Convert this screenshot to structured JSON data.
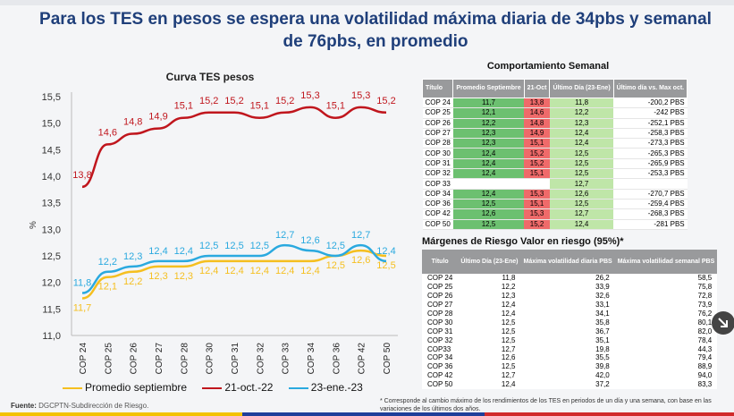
{
  "title": "Para los TES en pesos se espera una volatilidad máxima diaria de 34pbs y semanal de 76pbs, en promedio",
  "colors": {
    "title": "#1f3f7a",
    "promedio": "#f5bf1f",
    "oct": "#c0161d",
    "ene": "#2aa9df"
  },
  "chart_data": {
    "type": "line",
    "title": "Curva TES pesos",
    "ylabel": "%",
    "categories": [
      "COP 24",
      "COP 25",
      "COP 26",
      "COP 27",
      "COP 28",
      "COP 30",
      "COP 31",
      "COP 32",
      "COP 33",
      "COP 34",
      "COP 36",
      "COP 42",
      "COP 50"
    ],
    "ylim": [
      11.0,
      15.5
    ],
    "yticks": [
      "11,0",
      "11,5",
      "12,0",
      "12,5",
      "13,0",
      "13,5",
      "14,0",
      "14,5",
      "15,0",
      "15,5"
    ],
    "series": [
      {
        "name": "Promedio septiembre",
        "values": [
          11.7,
          12.1,
          12.2,
          12.3,
          12.3,
          12.4,
          12.4,
          12.4,
          12.4,
          12.4,
          12.5,
          12.6,
          12.5
        ],
        "labels": [
          "11,7",
          "12,1",
          "12,2",
          "12,3",
          "12,3",
          "12,4",
          "12,4",
          "12,4",
          "12,4",
          "12,4",
          "12,5",
          "12,6",
          "12,5"
        ]
      },
      {
        "name": "21-oct.-22",
        "values": [
          13.8,
          14.6,
          14.8,
          14.9,
          15.1,
          15.2,
          15.2,
          15.1,
          15.2,
          15.3,
          15.1,
          15.3,
          15.2
        ],
        "labels": [
          "13,8",
          "14,6",
          "14,8",
          "14,9",
          "15,1",
          "15,2",
          "15,2",
          "15,1",
          "15,2",
          "15,3",
          "15,1",
          "15,3",
          "15,2"
        ]
      },
      {
        "name": "23-ene.-23",
        "values": [
          11.8,
          12.2,
          12.3,
          12.4,
          12.4,
          12.5,
          12.5,
          12.5,
          12.7,
          12.6,
          12.5,
          12.7,
          12.4
        ],
        "labels": [
          "11,8",
          "12,2",
          "12,3",
          "12,4",
          "12,4",
          "12,5",
          "12,5",
          "12,5",
          "12,7",
          "12,6",
          "12,5",
          "12,7",
          "12,4"
        ]
      }
    ]
  },
  "table1": {
    "title": "Comportamiento Semanal",
    "headers": [
      "Título",
      "Promedio Septiembre",
      "21-Oct",
      "Último Día (23-Ene)",
      "Último día vs. Max oct."
    ],
    "rows": [
      [
        "COP 24",
        "11,7",
        "13,8",
        "11,8",
        "-200,2",
        "PBS"
      ],
      [
        "COP 25",
        "12,1",
        "14,6",
        "12,2",
        "-242",
        "PBS"
      ],
      [
        "COP 26",
        "12,2",
        "14,8",
        "12,3",
        "-252,1",
        "PBS"
      ],
      [
        "COP 27",
        "12,3",
        "14,9",
        "12,4",
        "-258,3",
        "PBS"
      ],
      [
        "COP 28",
        "12,3",
        "15,1",
        "12,4",
        "-273,3",
        "PBS"
      ],
      [
        "COP 30",
        "12,4",
        "15,2",
        "12,5",
        "-265,3",
        "PBS"
      ],
      [
        "COP 31",
        "12,4",
        "15,2",
        "12,5",
        "-265,9",
        "PBS"
      ],
      [
        "COP 32",
        "12,4",
        "15,1",
        "12,5",
        "-253,3",
        "PBS"
      ],
      [
        "COP 33",
        "",
        "",
        "12,7",
        "",
        ""
      ],
      [
        "COP 34",
        "12,4",
        "15,3",
        "12,6",
        "-270,7",
        "PBS"
      ],
      [
        "COP 36",
        "12,5",
        "15,1",
        "12,5",
        "-259,4",
        "PBS"
      ],
      [
        "COP 42",
        "12,6",
        "15,3",
        "12,7",
        "-268,3",
        "PBS"
      ],
      [
        "COP 50",
        "12,5",
        "15,2",
        "12,4",
        "-281",
        "PBS"
      ]
    ]
  },
  "table2": {
    "title": "Márgenes de Riesgo  Valor en riesgo (95%)*",
    "headers": [
      "Título",
      "Último Día (23-Ene)",
      "Máxima volatilidad diaria PBS",
      "Máxima volatilidad semanal PBS"
    ],
    "rows": [
      [
        "COP 24",
        "11,8",
        "26,2",
        "58,5"
      ],
      [
        "COP 25",
        "12,2",
        "33,9",
        "75,8"
      ],
      [
        "COP 26",
        "12,3",
        "32,6",
        "72,8"
      ],
      [
        "COP 27",
        "12,4",
        "33,1",
        "73,9"
      ],
      [
        "COP 28",
        "12,4",
        "34,1",
        "76,2"
      ],
      [
        "COP 30",
        "12,5",
        "35,8",
        "80,1"
      ],
      [
        "COP 31",
        "12,5",
        "36,7",
        "82,0"
      ],
      [
        "COP 32",
        "12,5",
        "35,1",
        "78,4"
      ],
      [
        "COP33",
        "12,7",
        "19,8",
        "44,3"
      ],
      [
        "COP 34",
        "12,6",
        "35,5",
        "79,4"
      ],
      [
        "COP 36",
        "12,5",
        "39,8",
        "88,9"
      ],
      [
        "COP 42",
        "12,7",
        "42,0",
        "94,0"
      ],
      [
        "COP 50",
        "12,4",
        "37,2",
        "83,3"
      ]
    ]
  },
  "footnote": "* Corresponde al cambio máximo de los rendimientos de los TES en periodos de un día y una semana, con base en las variaciones de los últimos dos años.",
  "source_label": "Fuente:",
  "source": "DGCPTN-Subdirección de Riesgo."
}
